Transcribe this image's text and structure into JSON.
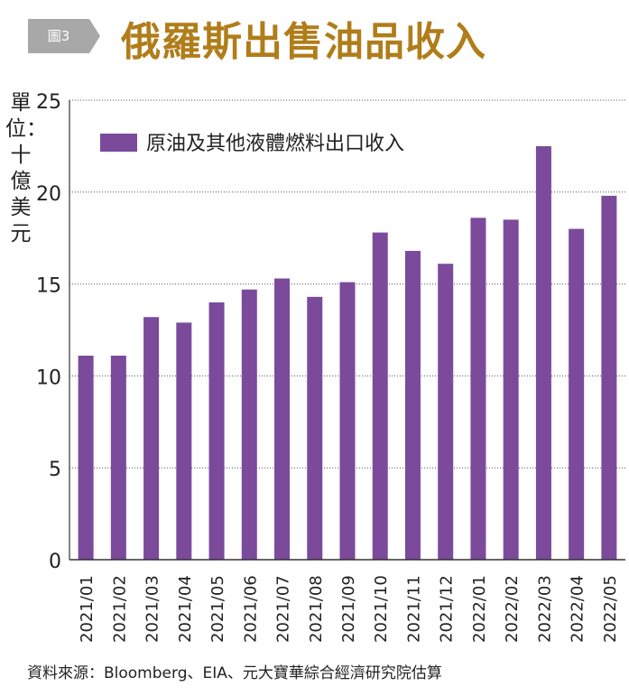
{
  "figure_tag": "圖3",
  "title": "俄羅斯出售油品收入",
  "source": "資料來源：Bloomberg、EIA、元大寶華綜合經濟研究院估算",
  "colors": {
    "bar": "#7b4a9b",
    "title": "#b07d1a",
    "tag_bg": "#a8a8a8",
    "grid": "#555555"
  },
  "chart_data": {
    "type": "bar",
    "title": "俄羅斯出售油品收入",
    "ylabel": "單位：十億美元",
    "xlabel": "",
    "ylim": [
      0,
      25
    ],
    "yticks": [
      0,
      5,
      10,
      15,
      20,
      25
    ],
    "grid": true,
    "legend": "top-left",
    "categories": [
      "2021/01",
      "2021/02",
      "2021/03",
      "2021/04",
      "2021/05",
      "2021/06",
      "2021/07",
      "2021/08",
      "2021/09",
      "2021/10",
      "2021/11",
      "2021/12",
      "2022/01",
      "2022/02",
      "2022/03",
      "2022/04",
      "2022/05"
    ],
    "series": [
      {
        "name": "原油及其他液體燃料出口收入",
        "values": [
          11.1,
          11.1,
          13.2,
          12.9,
          14.0,
          14.7,
          15.3,
          14.3,
          15.1,
          17.8,
          16.8,
          16.1,
          18.6,
          18.5,
          22.5,
          18.0,
          19.8
        ]
      }
    ]
  }
}
